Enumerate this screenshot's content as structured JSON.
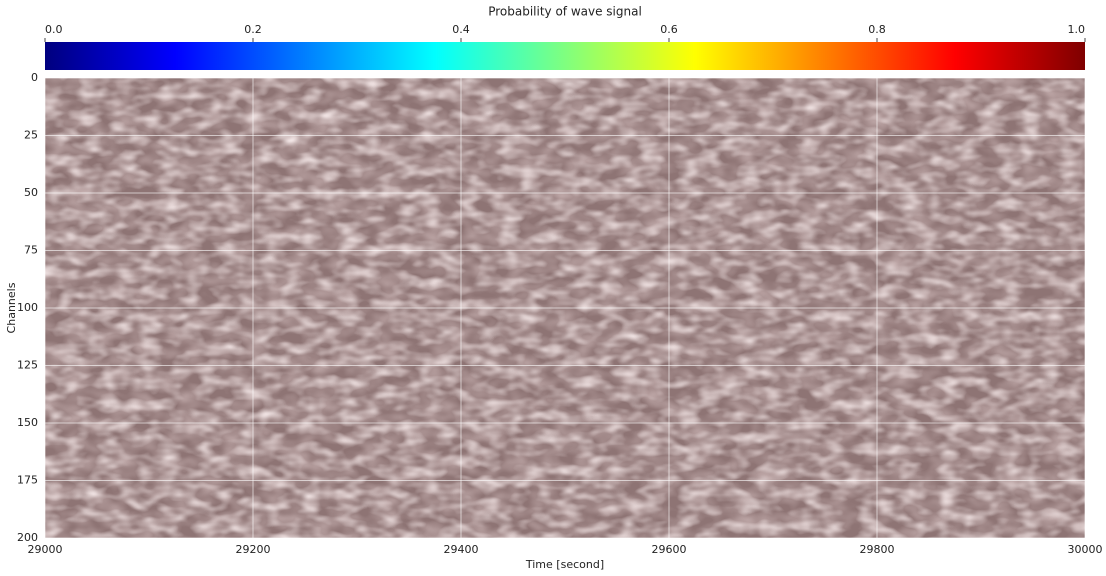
{
  "chart_data": {
    "type": "heatmap",
    "title": "Probability of wave signal",
    "xlabel": "Time [second]",
    "ylabel": "Channels",
    "xlim": [
      29000,
      30000
    ],
    "xticks": [
      29000,
      29200,
      29400,
      29600,
      29800,
      30000
    ],
    "ylim": [
      200,
      0
    ],
    "yticks": [
      0,
      25,
      50,
      75,
      100,
      125,
      150,
      175,
      200
    ],
    "grid": true,
    "colormap": "jet",
    "clim": [
      0,
      1
    ],
    "cticks": [
      {
        "value": 0,
        "label": "0.0"
      },
      {
        "value": 0.2,
        "label": "0.2"
      },
      {
        "value": 0.4,
        "label": "0.4"
      },
      {
        "value": 0.6,
        "label": "0.6"
      },
      {
        "value": 0.8,
        "label": "0.8"
      },
      {
        "value": 1,
        "label": "1.0"
      }
    ]
  }
}
